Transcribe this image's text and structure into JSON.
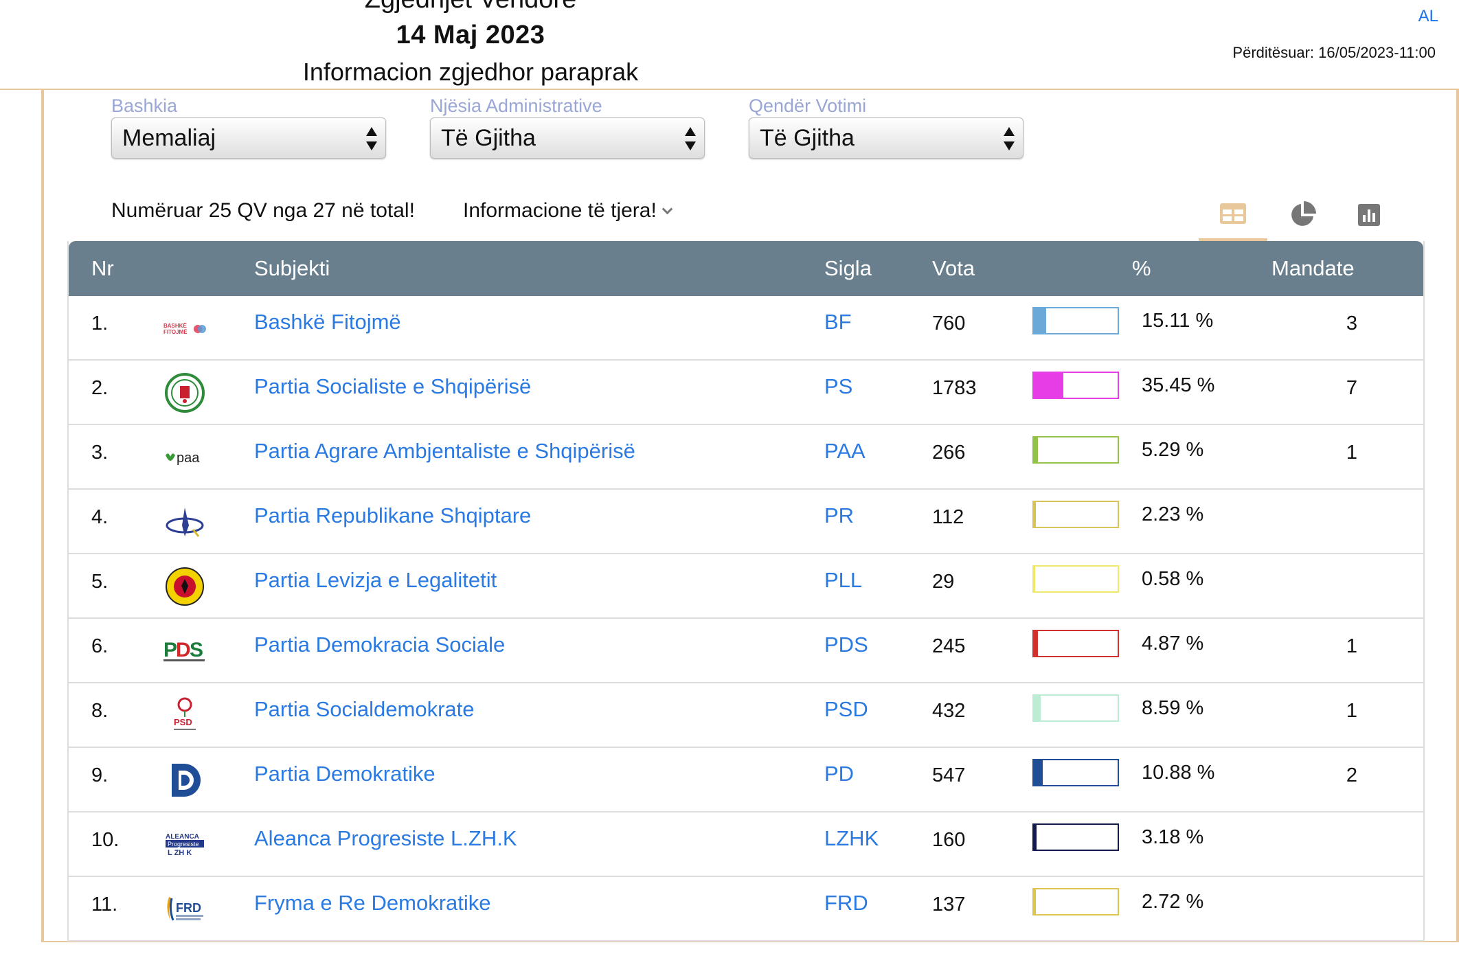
{
  "header": {
    "title_line1": "Zgjedhjet Vendore",
    "date": "14 Maj 2023",
    "subtitle": "Informacion zgjedhor paraprak",
    "language": "AL",
    "updated": "Përditësuar: 16/05/2023-11:00"
  },
  "filters": {
    "bashkia": {
      "label": "Bashkia",
      "value": "Memaliaj"
    },
    "njesia": {
      "label": "Njësia Administrative",
      "value": "Të Gjitha"
    },
    "qender": {
      "label": "Qendër Votimi",
      "value": "Të Gjitha"
    }
  },
  "summary": {
    "counted": "Numëruar 25 QV nga 27 në total!",
    "more_info": "Informacione të tjera!"
  },
  "view_tabs": {
    "active": "table",
    "icons": [
      "table-icon",
      "pie-chart-icon",
      "bar-chart-icon"
    ],
    "active_color": "#e8c79a",
    "inactive_color": "#777777"
  },
  "table": {
    "headers": {
      "nr": "Nr",
      "subjekti": "Subjekti",
      "sigla": "Sigla",
      "vota": "Vota",
      "pct": "%",
      "mandate": "Mandate"
    },
    "rows": [
      {
        "nr": "1.",
        "logo": "bf-logo",
        "name": "Bashkë Fitojmë",
        "sigla": "BF",
        "vota": "760",
        "pct_value": 15.11,
        "pct": "15.11 %",
        "mandate": "3",
        "color": "#6aa9d8"
      },
      {
        "nr": "2.",
        "logo": "ps-logo",
        "name": "Partia Socialiste e Shqipërisë",
        "sigla": "PS",
        "vota": "1783",
        "pct_value": 35.45,
        "pct": "35.45 %",
        "mandate": "7",
        "color": "#e63de6"
      },
      {
        "nr": "3.",
        "logo": "paa-logo",
        "name": "Partia Agrare Ambjentaliste e Shqipërisë",
        "sigla": "PAA",
        "vota": "266",
        "pct_value": 5.29,
        "pct": "5.29 %",
        "mandate": "1",
        "color": "#93c24a"
      },
      {
        "nr": "4.",
        "logo": "pr-logo",
        "name": "Partia Republikane Shqiptare",
        "sigla": "PR",
        "vota": "112",
        "pct_value": 2.23,
        "pct": "2.23 %",
        "mandate": "",
        "color": "#d8c456"
      },
      {
        "nr": "5.",
        "logo": "pll-logo",
        "name": "Partia Levizja e Legalitetit",
        "sigla": "PLL",
        "vota": "29",
        "pct_value": 0.58,
        "pct": "0.58 %",
        "mandate": "",
        "color": "#f0e86a"
      },
      {
        "nr": "6.",
        "logo": "pds-logo",
        "name": "Partia Demokracia Sociale",
        "sigla": "PDS",
        "vota": "245",
        "pct_value": 4.87,
        "pct": "4.87 %",
        "mandate": "1",
        "color": "#d0312d"
      },
      {
        "nr": "8.",
        "logo": "psd-logo",
        "name": "Partia Socialdemokrate",
        "sigla": "PSD",
        "vota": "432",
        "pct_value": 8.59,
        "pct": "8.59 %",
        "mandate": "1",
        "color": "#bdecd4"
      },
      {
        "nr": "9.",
        "logo": "pd-logo",
        "name": "Partia Demokratike",
        "sigla": "PD",
        "vota": "547",
        "pct_value": 10.88,
        "pct": "10.88 %",
        "mandate": "2",
        "color": "#1f4e96"
      },
      {
        "nr": "10.",
        "logo": "lzhk-logo",
        "name": "Aleanca Progresiste L.ZH.K",
        "sigla": "LZHK",
        "vota": "160",
        "pct_value": 3.18,
        "pct": "3.18 %",
        "mandate": "",
        "color": "#141a4c"
      },
      {
        "nr": "11.",
        "logo": "frd-logo",
        "name": "Fryma e Re Demokratike",
        "sigla": "FRD",
        "vota": "137",
        "pct_value": 2.72,
        "pct": "2.72 %",
        "mandate": "",
        "color": "#dcc44e"
      }
    ]
  }
}
